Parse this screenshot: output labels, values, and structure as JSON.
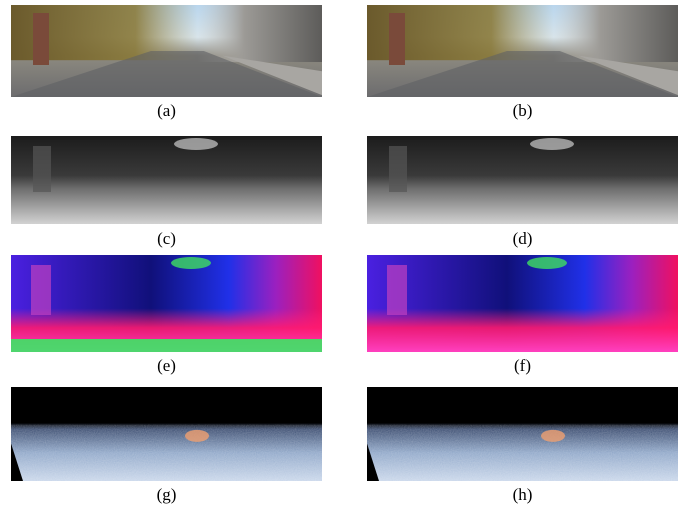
{
  "panels": [
    {
      "label": "(a)"
    },
    {
      "label": "(b)"
    },
    {
      "label": "(c)"
    },
    {
      "label": "(d)"
    },
    {
      "label": "(e)"
    },
    {
      "label": "(f)"
    },
    {
      "label": "(g)"
    },
    {
      "label": "(h)"
    }
  ]
}
